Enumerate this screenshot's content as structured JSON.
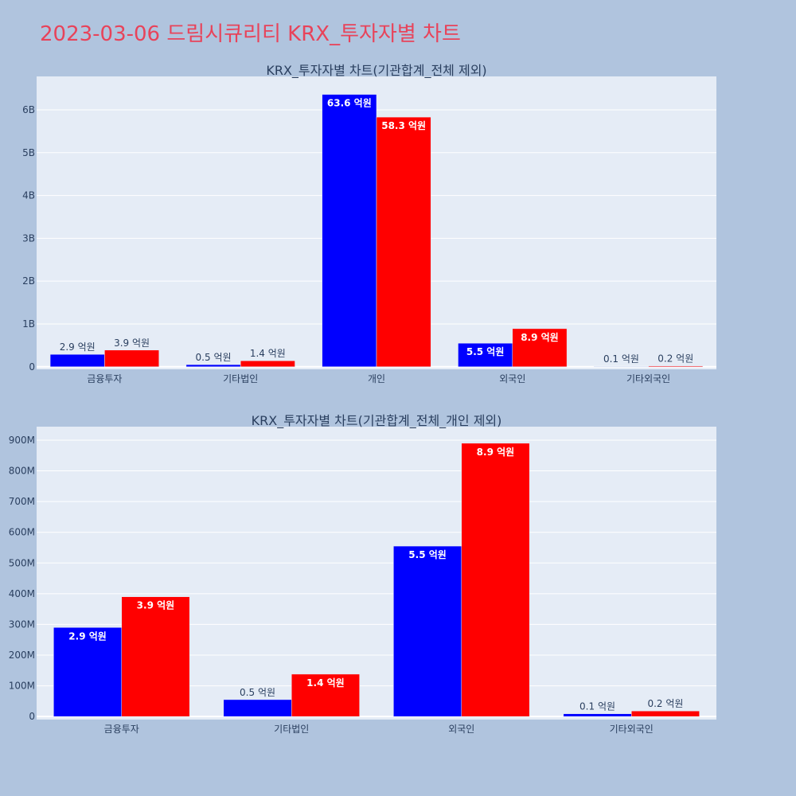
{
  "page": {
    "title": "2023-03-06 드림시큐리티 KRX_투자자별 차트"
  },
  "colors": {
    "background": "#b0c4de",
    "plot_bg": "#e5ecf6",
    "title": "#e8435a",
    "series1": "#0000ff",
    "series2": "#ff0000",
    "grid": "#ffffff",
    "text": "#2a3f5f"
  },
  "chart_data": [
    {
      "type": "bar",
      "title": "KRX_투자자별 차트(기관합계_전체 제외)",
      "categories": [
        "금융투자",
        "기타법인",
        "개인",
        "외국인",
        "기타외국인"
      ],
      "series": [
        {
          "color": "#0000ff",
          "values": [
            290000000,
            50000000,
            6360000000,
            550000000,
            10000000
          ],
          "labels": [
            "2.9 억원",
            "0.5 억원",
            "63.6 억원",
            "5.5 억원",
            "0.1 억원"
          ]
        },
        {
          "color": "#ff0000",
          "values": [
            390000000,
            140000000,
            5830000000,
            890000000,
            20000000
          ],
          "labels": [
            "3.9 억원",
            "1.4 억원",
            "58.3 억원",
            "8.9 억원",
            "0.2 억원"
          ]
        }
      ],
      "yticks": [
        0,
        1000000000,
        2000000000,
        3000000000,
        4000000000,
        5000000000,
        6000000000
      ],
      "ytick_labels": [
        "0",
        "1B",
        "2B",
        "3B",
        "4B",
        "5B",
        "6B"
      ],
      "ylim": [
        -60000000,
        6780000000
      ],
      "grid": true,
      "legend": "none"
    },
    {
      "type": "bar",
      "title": "KRX_투자자별 차트(기관합계_전체_개인 제외)",
      "categories": [
        "금융투자",
        "기타법인",
        "외국인",
        "기타외국인"
      ],
      "series": [
        {
          "color": "#0000ff",
          "values": [
            290000000,
            55000000,
            555000000,
            9000000
          ],
          "labels": [
            "2.9 억원",
            "0.5 억원",
            "5.5 억원",
            "0.1 억원"
          ]
        },
        {
          "color": "#ff0000",
          "values": [
            390000000,
            138000000,
            890000000,
            18000000
          ],
          "labels": [
            "3.9 억원",
            "1.4 억원",
            "8.9 억원",
            "0.2 억원"
          ]
        }
      ],
      "yticks": [
        0,
        100000000,
        200000000,
        300000000,
        400000000,
        500000000,
        600000000,
        700000000,
        800000000,
        900000000
      ],
      "ytick_labels": [
        "0",
        "100M",
        "200M",
        "300M",
        "400M",
        "500M",
        "600M",
        "700M",
        "800M",
        "900M"
      ],
      "ylim": [
        -10000000,
        944000000
      ],
      "grid": true,
      "legend": "none"
    }
  ]
}
